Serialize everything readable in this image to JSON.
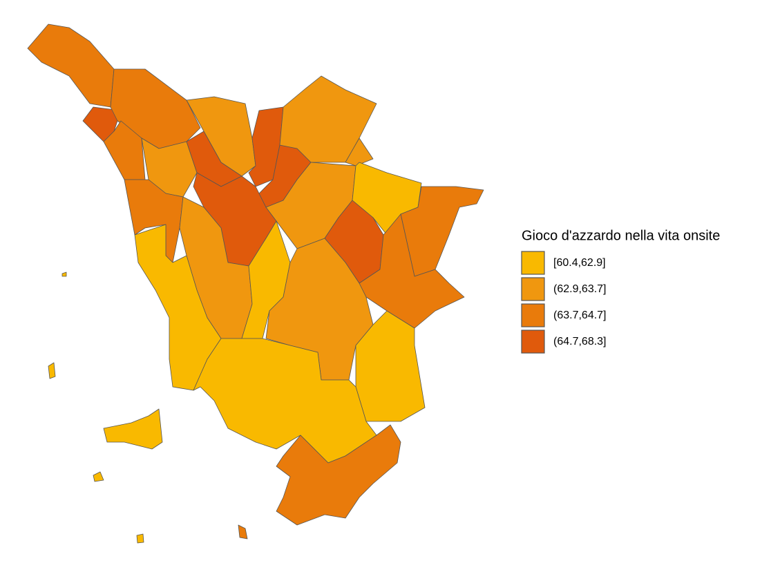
{
  "legend": {
    "title": "Gioco d'azzardo nella vita onsite",
    "items": [
      {
        "label": "[60.4,62.9]",
        "color": "#f9b900"
      },
      {
        "label": "(62.9,63.7]",
        "color": "#f0970f"
      },
      {
        "label": "(63.7,64.7]",
        "color": "#e97b0b"
      },
      {
        "label": "(64.7,68.3]",
        "color": "#e05a0c"
      }
    ]
  }
}
